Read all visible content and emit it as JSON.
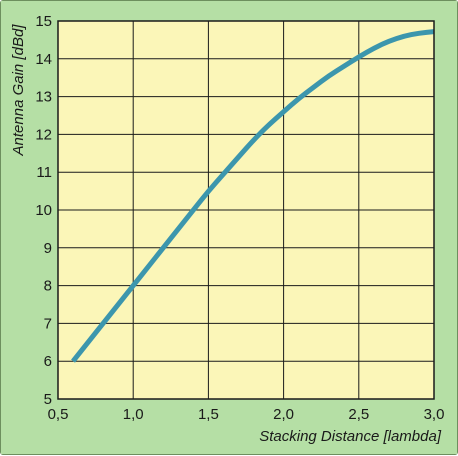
{
  "chart_data": {
    "type": "line",
    "title": "",
    "xlabel": "Stacking Distance [lambda]",
    "ylabel": "Antenna Gain [dBd]",
    "xlim": [
      0.5,
      3.0
    ],
    "ylim": [
      5,
      15
    ],
    "x_ticks": [
      "0,5",
      "1,0",
      "1,5",
      "2,0",
      "2,5",
      "3,0"
    ],
    "y_ticks": [
      "5",
      "6",
      "7",
      "8",
      "9",
      "10",
      "11",
      "12",
      "13",
      "14",
      "15"
    ],
    "grid": true,
    "legend": "none",
    "series": [
      {
        "x": [
          0.6,
          0.7,
          0.8,
          0.9,
          1.0,
          1.1,
          1.2,
          1.3,
          1.4,
          1.5,
          1.6,
          1.7,
          1.8,
          1.9,
          2.0,
          2.1,
          2.2,
          2.3,
          2.4,
          2.5,
          2.6,
          2.7,
          2.8,
          2.9,
          3.0
        ],
        "y": [
          6.0,
          6.5,
          7.0,
          7.5,
          8.0,
          8.5,
          9.0,
          9.5,
          10.0,
          10.5,
          10.95,
          11.4,
          11.85,
          12.25,
          12.6,
          12.95,
          13.25,
          13.55,
          13.8,
          14.05,
          14.28,
          14.47,
          14.6,
          14.68,
          14.72
        ],
        "color": "#3c96ad"
      }
    ],
    "colors": {
      "outer_background": "#b5dfa5",
      "plot_background": "#fbf6b8",
      "grid": "#1a1a1a",
      "line": "#3c96ad"
    }
  }
}
